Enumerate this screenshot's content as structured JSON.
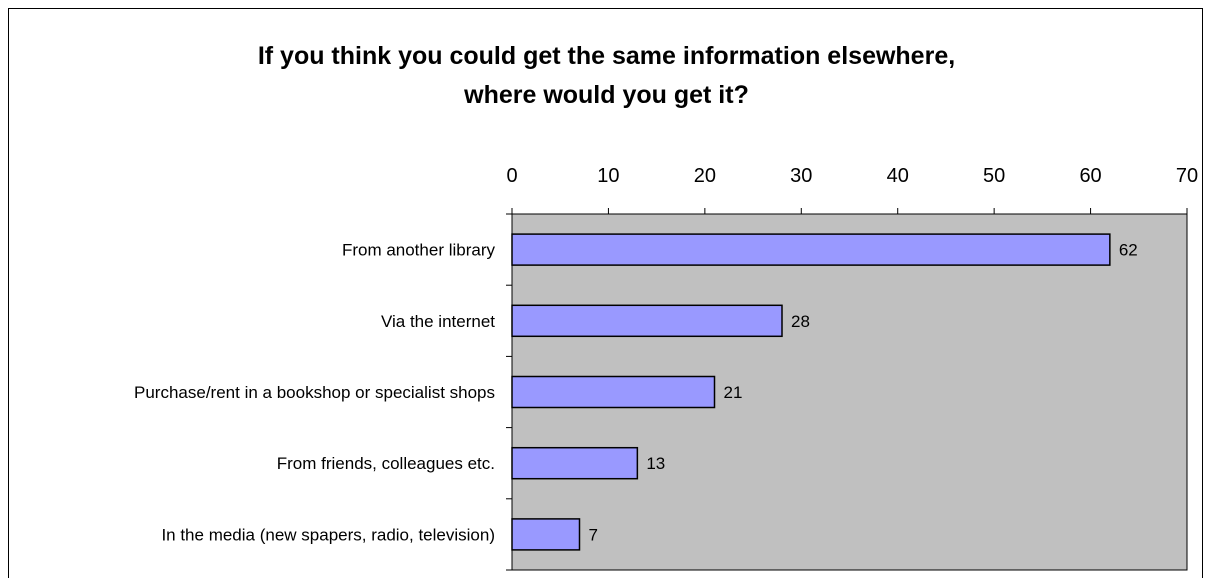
{
  "chart_data": {
    "type": "bar",
    "orientation": "horizontal",
    "title_lines": [
      "If you think you could get the same information elsewhere,",
      "where would you get it?"
    ],
    "categories": [
      "From another library",
      "Via the internet",
      "Purchase/rent in a bookshop or specialist shops",
      "From friends, colleagues etc.",
      "In the media (new spapers, radio, television)"
    ],
    "values": [
      62,
      28,
      21,
      13,
      7
    ],
    "data_labels": [
      "62",
      "28",
      "21",
      "13",
      "7"
    ],
    "xlim": [
      0,
      70
    ],
    "x_ticks": [
      "0",
      "10",
      "20",
      "30",
      "40",
      "50",
      "60",
      "70"
    ],
    "x_axis_position": "top",
    "grid": false,
    "legend": "none",
    "colors": {
      "bar_fill": "#9999ff",
      "bar_stroke": "#000000",
      "plot_background": "#c0c0c0"
    }
  }
}
